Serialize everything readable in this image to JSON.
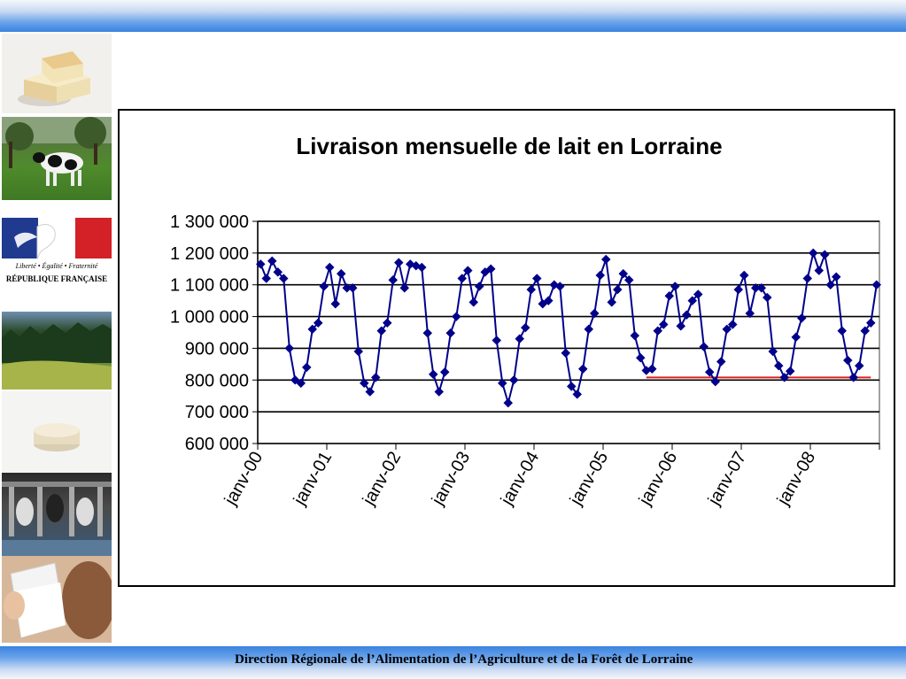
{
  "footer": {
    "text": "Direction Régionale de l’Alimentation de l’Agriculture et de la Forêt de Lorraine"
  },
  "sidebar": {
    "images": [
      "cheese",
      "cow",
      "republique-francaise-logo",
      "forest",
      "round-cheese",
      "milking-parlor",
      "drinking-milk"
    ],
    "logo_text": {
      "motto": "Liberté • Égalité • Fraternité",
      "name": "RÉPUBLIQUE FRANÇAISE"
    }
  },
  "colors": {
    "series": "#00008b",
    "reference_line": "#e02020",
    "gridline": "#000000",
    "plot_border": "#808080"
  },
  "chart_data": {
    "type": "line",
    "title": "Livraison mensuelle de lait en Lorraine",
    "xlabel": "",
    "ylabel": "",
    "ylim": [
      600000,
      1300000
    ],
    "yticks": [
      600000,
      700000,
      800000,
      900000,
      1000000,
      1100000,
      1200000,
      1300000
    ],
    "ytick_labels": [
      "600 000",
      "700 000",
      "800 000",
      "900 000",
      "1 000 000",
      "1 100 000",
      "1 200 000",
      "1 300 000"
    ],
    "xtick_labels": [
      "janv-00",
      "janv-01",
      "janv-02",
      "janv-03",
      "janv-04",
      "janv-05",
      "janv-06",
      "janv-07",
      "janv-08"
    ],
    "x_start": "2000-01",
    "grid": true,
    "legend": "none",
    "series": [
      {
        "marker": "diamond",
        "values": [
          1165000,
          1120000,
          1175000,
          1140000,
          1120000,
          900000,
          800000,
          790000,
          840000,
          960000,
          980000,
          1095000,
          1155000,
          1040000,
          1135000,
          1090000,
          1090000,
          890000,
          790000,
          763000,
          808000,
          955000,
          980000,
          1115000,
          1170000,
          1090000,
          1165000,
          1160000,
          1155000,
          948000,
          818000,
          763000,
          825000,
          948000,
          1000000,
          1120000,
          1145000,
          1045000,
          1095000,
          1140000,
          1150000,
          925000,
          790000,
          728000,
          800000,
          930000,
          965000,
          1085000,
          1120000,
          1040000,
          1050000,
          1100000,
          1095000,
          885000,
          780000,
          755000,
          835000,
          960000,
          1010000,
          1130000,
          1180000,
          1045000,
          1085000,
          1135000,
          1115000,
          940000,
          870000,
          830000,
          835000,
          955000,
          975000,
          1065000,
          1095000,
          970000,
          1005000,
          1050000,
          1070000,
          905000,
          825000,
          795000,
          858000,
          960000,
          975000,
          1085000,
          1130000,
          1010000,
          1090000,
          1090000,
          1060000,
          890000,
          845000,
          808000,
          828000,
          935000,
          995000,
          1120000,
          1200000,
          1145000,
          1195000,
          1100000,
          1125000,
          955000,
          862000,
          808000,
          845000,
          955000,
          980000,
          1100000
        ]
      }
    ],
    "reference_line": {
      "y": 808000,
      "from": "2005-08",
      "to": "2008-11"
    }
  }
}
